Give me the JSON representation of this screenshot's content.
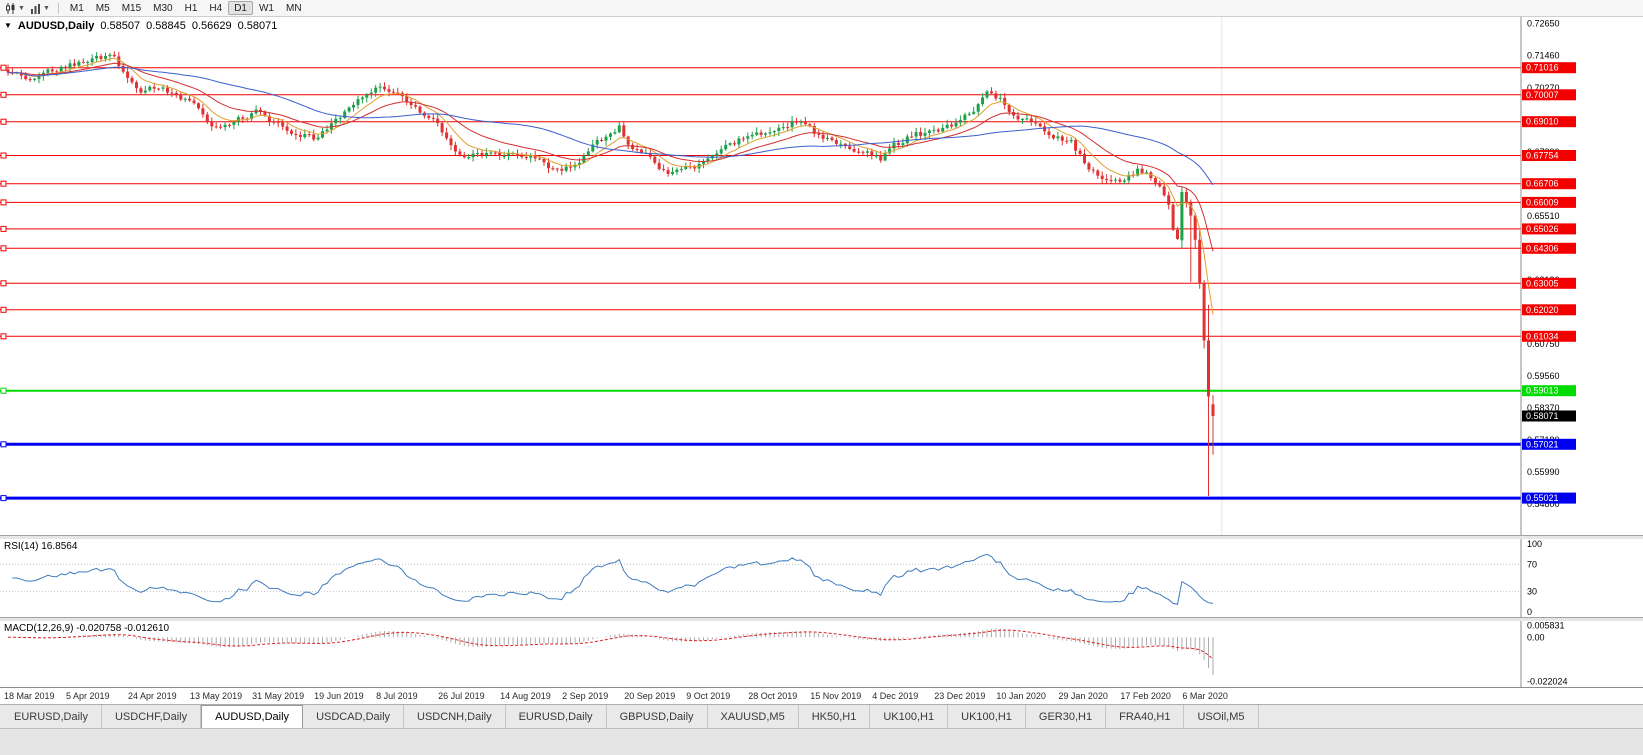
{
  "toolbar": {
    "timeframes": [
      {
        "label": "M1",
        "active": false
      },
      {
        "label": "M5",
        "active": false
      },
      {
        "label": "M15",
        "active": false
      },
      {
        "label": "M30",
        "active": false
      },
      {
        "label": "H1",
        "active": false
      },
      {
        "label": "H4",
        "active": false
      },
      {
        "label": "D1",
        "active": true
      },
      {
        "label": "W1",
        "active": false
      },
      {
        "label": "MN",
        "active": false
      }
    ]
  },
  "chart": {
    "symbol": "AUDUSD,Daily",
    "open": "0.58507",
    "high": "0.58845",
    "low": "0.56629",
    "close": "0.58071"
  },
  "rsi": {
    "label": "RSI(14) 16.8564",
    "axis": [
      "100",
      "70",
      "30",
      "0"
    ],
    "levels": [
      70,
      30
    ],
    "color": "#3E7BBF"
  },
  "macd": {
    "label": "MACD(12,26,9) -0.020758 -0.012610",
    "axis": [
      {
        "v": 0.005831,
        "label": "0.005831"
      },
      {
        "v": 0,
        "label": "0.00"
      },
      {
        "v": -0.022024,
        "label": "-0.022024"
      }
    ]
  },
  "price_axis": {
    "top": 0.7265,
    "step": 0.0119,
    "labels": [
      "0.72650",
      "0.71460",
      "0.70270",
      "0.69080",
      "0.67890",
      "0.66700",
      "0.65510",
      "0.64320",
      "0.63130",
      "0.61940",
      "0.60750",
      "0.59560",
      "0.58370",
      "0.57180",
      "0.55990",
      "0.54800"
    ]
  },
  "hlines": [
    {
      "price": 0.71016,
      "label": "0.71016",
      "color": "#F40000",
      "width": 1
    },
    {
      "price": 0.70007,
      "label": "0.70007",
      "color": "#F40000",
      "width": 1
    },
    {
      "price": 0.6901,
      "label": "0.69010",
      "color": "#F40000",
      "width": 1
    },
    {
      "price": 0.67754,
      "label": "0.67754",
      "color": "#F40000",
      "width": 1
    },
    {
      "price": 0.66706,
      "label": "0.66706",
      "color": "#F40000",
      "width": 1
    },
    {
      "price": 0.66009,
      "label": "0.66009",
      "color": "#F40000",
      "width": 1
    },
    {
      "price": 0.65026,
      "label": "0.65026",
      "color": "#F40000",
      "width": 1
    },
    {
      "price": 0.64306,
      "label": "0.64306",
      "color": "#F40000",
      "width": 1
    },
    {
      "price": 0.63005,
      "label": "0.63005",
      "color": "#F40000",
      "width": 1
    },
    {
      "price": 0.6202,
      "label": "0.62020",
      "color": "#F40000",
      "width": 1
    },
    {
      "price": 0.61034,
      "label": "0.61034",
      "color": "#F40000",
      "width": 1
    },
    {
      "price": 0.59013,
      "label": "0.59013",
      "color": "#00DC00",
      "width": 2
    },
    {
      "price": 0.57021,
      "label": "0.57021",
      "color": "#0000F0",
      "width": 3
    },
    {
      "price": 0.55021,
      "label": "0.55021",
      "color": "#0000F0",
      "width": 3
    }
  ],
  "bid": {
    "price": 0.58071,
    "label": "0.58071",
    "color": "#000000"
  },
  "dates": [
    "18 Mar 2019",
    "5 Apr 2019",
    "24 Apr 2019",
    "13 May 2019",
    "31 May 2019",
    "19 Jun 2019",
    "8 Jul 2019",
    "26 Jul 2019",
    "14 Aug 2019",
    "2 Sep 2019",
    "20 Sep 2019",
    "9 Oct 2019",
    "28 Oct 2019",
    "15 Nov 2019",
    "4 Dec 2019",
    "23 Dec 2019",
    "10 Jan 2020",
    "29 Jan 2020",
    "17 Feb 2020",
    "6 Mar 2020"
  ],
  "tabs": [
    {
      "label": "EURUSD,Daily",
      "active": false
    },
    {
      "label": "USDCHF,Daily",
      "active": false
    },
    {
      "label": "AUDUSD,Daily",
      "active": true
    },
    {
      "label": "USDCAD,Daily",
      "active": false
    },
    {
      "label": "USDCNH,Daily",
      "active": false
    },
    {
      "label": "EURUSD,Daily",
      "active": false
    },
    {
      "label": "GBPUSD,Daily",
      "active": false
    },
    {
      "label": "XAUUSD,M5",
      "active": false
    },
    {
      "label": "HK50,H1",
      "active": false
    },
    {
      "label": "UK100,H1",
      "active": false
    },
    {
      "label": "UK100,H1",
      "active": false
    },
    {
      "label": "GER30,H1",
      "active": false
    },
    {
      "label": "FRA40,H1",
      "active": false
    },
    {
      "label": "USOil,M5",
      "active": false
    }
  ],
  "chart_data": {
    "type": "candlestick",
    "symbol": "AUDUSD",
    "timeframe": "Daily",
    "title": "AUDUSD,Daily",
    "current_bar": {
      "open": 0.58507,
      "high": 0.58845,
      "low": 0.56629,
      "close": 0.58071
    },
    "bars": 273,
    "price_range": {
      "top": 0.729,
      "bottom": 0.5365
    },
    "anchors": [
      [
        0,
        0.709
      ],
      [
        6,
        0.7062
      ],
      [
        12,
        0.71
      ],
      [
        18,
        0.7132
      ],
      [
        24,
        0.715
      ],
      [
        27,
        0.7062
      ],
      [
        30,
        0.7012
      ],
      [
        34,
        0.7026
      ],
      [
        38,
        0.6996
      ],
      [
        42,
        0.6958
      ],
      [
        46,
        0.6886
      ],
      [
        48,
        0.6868
      ],
      [
        52,
        0.692
      ],
      [
        56,
        0.6932
      ],
      [
        60,
        0.69
      ],
      [
        64,
        0.6868
      ],
      [
        69,
        0.6838
      ],
      [
        73,
        0.6892
      ],
      [
        77,
        0.695
      ],
      [
        81,
        0.702
      ],
      [
        84,
        0.7032
      ],
      [
        88,
        0.7
      ],
      [
        92,
        0.6962
      ],
      [
        96,
        0.6906
      ],
      [
        99,
        0.683
      ],
      [
        102,
        0.6766
      ],
      [
        106,
        0.6788
      ],
      [
        110,
        0.6796
      ],
      [
        114,
        0.6772
      ],
      [
        118,
        0.6782
      ],
      [
        122,
        0.6738
      ],
      [
        125,
        0.6716
      ],
      [
        128,
        0.6732
      ],
      [
        132,
        0.6808
      ],
      [
        136,
        0.6862
      ],
      [
        138,
        0.688
      ],
      [
        141,
        0.6796
      ],
      [
        145,
        0.6766
      ],
      [
        149,
        0.6712
      ],
      [
        152,
        0.6722
      ],
      [
        156,
        0.6742
      ],
      [
        160,
        0.6776
      ],
      [
        164,
        0.682
      ],
      [
        167,
        0.6856
      ],
      [
        171,
        0.6846
      ],
      [
        175,
        0.6872
      ],
      [
        178,
        0.6902
      ],
      [
        182,
        0.6862
      ],
      [
        186,
        0.6822
      ],
      [
        190,
        0.6796
      ],
      [
        194,
        0.6786
      ],
      [
        197,
        0.6768
      ],
      [
        200,
        0.6812
      ],
      [
        204,
        0.6848
      ],
      [
        208,
        0.6862
      ],
      [
        212,
        0.6876
      ],
      [
        216,
        0.6918
      ],
      [
        219,
        0.6958
      ],
      [
        221,
        0.7016
      ],
      [
        224,
        0.6982
      ],
      [
        228,
        0.6912
      ],
      [
        232,
        0.6896
      ],
      [
        236,
        0.6856
      ],
      [
        240,
        0.6828
      ],
      [
        243,
        0.6752
      ],
      [
        246,
        0.6706
      ],
      [
        249,
        0.6678
      ],
      [
        252,
        0.6692
      ],
      [
        255,
        0.6722
      ],
      [
        258,
        0.6692
      ],
      [
        260,
        0.6656
      ],
      [
        262,
        0.6582
      ],
      [
        263,
        0.65
      ],
      [
        264,
        0.6455
      ],
      [
        272,
        0.581
      ]
    ],
    "last_bars": [
      {
        "o": 0.646,
        "h": 0.6658,
        "l": 0.643,
        "c": 0.664
      },
      {
        "o": 0.664,
        "h": 0.6652,
        "l": 0.6582,
        "c": 0.66
      },
      {
        "o": 0.66,
        "h": 0.6612,
        "l": 0.6305,
        "c": 0.6552
      },
      {
        "o": 0.6552,
        "h": 0.656,
        "l": 0.6428,
        "c": 0.6462
      },
      {
        "o": 0.6462,
        "h": 0.6502,
        "l": 0.628,
        "c": 0.6302
      },
      {
        "o": 0.6302,
        "h": 0.6312,
        "l": 0.6058,
        "c": 0.6088
      },
      {
        "o": 0.6088,
        "h": 0.622,
        "l": 0.551,
        "c": 0.588
      },
      {
        "o": 0.58507,
        "h": 0.58845,
        "l": 0.56629,
        "c": 0.58071
      }
    ],
    "moving_averages": [
      {
        "period": 8,
        "method": "ema",
        "color": "#E0A030",
        "name": "fast-ma"
      },
      {
        "period": 20,
        "method": "ema",
        "color": "#D23030",
        "name": "mid-ma"
      },
      {
        "period": 45,
        "method": "sma",
        "color": "#3A5FCD",
        "name": "slow-ma"
      }
    ],
    "up_color": "#1CA049",
    "down_color": "#E03232",
    "rsi": {
      "period": 14,
      "current": 16.8564
    },
    "macd": {
      "fast": 12,
      "slow": 26,
      "signal": 9,
      "main": -0.020758,
      "signal_value": -0.01261,
      "axis_max": 0.005831,
      "axis_min": -0.022024,
      "hist_color": "#ABABAB",
      "signal_color": "#E02020"
    }
  }
}
